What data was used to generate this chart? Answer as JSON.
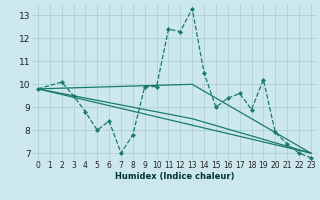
{
  "xlabel": "Humidex (Indice chaleur)",
  "bg_color": "#cce8ee",
  "grid_color": "#b0d0d8",
  "line_color": "#1a7a6a",
  "xlim": [
    -0.5,
    23.5
  ],
  "ylim": [
    6.7,
    13.5
  ],
  "yticks": [
    7,
    8,
    9,
    10,
    11,
    12,
    13
  ],
  "xticks": [
    0,
    1,
    2,
    3,
    4,
    5,
    6,
    7,
    8,
    9,
    10,
    11,
    12,
    13,
    14,
    15,
    16,
    17,
    18,
    19,
    20,
    21,
    22,
    23
  ],
  "series1": {
    "x": [
      0,
      2,
      3,
      4,
      5,
      6,
      7,
      8,
      9,
      10,
      11,
      12,
      13,
      14,
      15,
      16,
      17,
      18,
      19,
      20,
      21,
      22,
      23
    ],
    "y": [
      9.8,
      10.1,
      9.5,
      8.8,
      8.0,
      8.4,
      7.0,
      7.8,
      9.9,
      9.9,
      12.4,
      12.3,
      13.3,
      10.5,
      9.0,
      9.4,
      9.6,
      8.9,
      10.2,
      7.9,
      7.4,
      7.0,
      6.8
    ]
  },
  "series2": {
    "x": [
      0,
      23
    ],
    "y": [
      9.8,
      7.0
    ]
  },
  "series3": {
    "x": [
      0,
      13,
      23
    ],
    "y": [
      9.8,
      10.0,
      7.0
    ]
  },
  "series4": {
    "x": [
      0,
      13,
      23
    ],
    "y": [
      9.8,
      8.5,
      7.0
    ]
  }
}
